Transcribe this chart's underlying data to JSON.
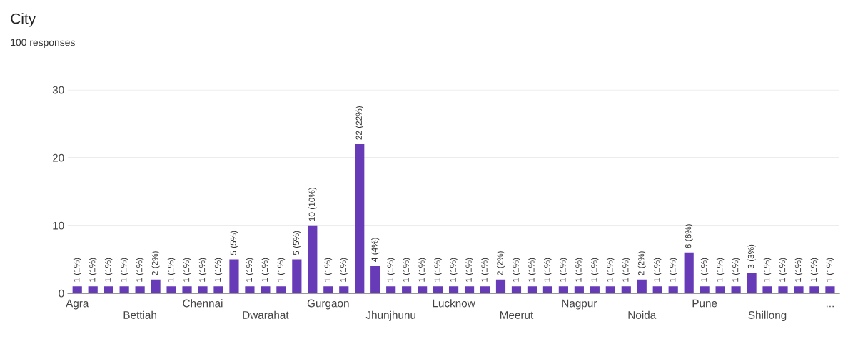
{
  "chart_data": {
    "type": "bar",
    "title": "City",
    "subtitle": "100 responses",
    "categories": [
      "Agra",
      null,
      null,
      null,
      "Bettiah",
      null,
      null,
      null,
      "Chennai",
      null,
      null,
      null,
      "Dwarahat",
      null,
      null,
      null,
      "Gurgaon",
      null,
      null,
      null,
      "Jhunjhunu",
      null,
      null,
      null,
      "Lucknow",
      null,
      null,
      null,
      "Meerut",
      null,
      null,
      null,
      "Nagpur",
      null,
      null,
      null,
      "Noida",
      null,
      null,
      null,
      "Pune",
      null,
      null,
      null,
      "Shillong",
      null,
      null,
      null,
      "..."
    ],
    "values": [
      1,
      1,
      1,
      1,
      1,
      2,
      1,
      1,
      1,
      1,
      5,
      1,
      1,
      1,
      5,
      10,
      1,
      1,
      22,
      4,
      1,
      1,
      1,
      1,
      1,
      1,
      1,
      2,
      1,
      1,
      1,
      1,
      1,
      1,
      1,
      1,
      2,
      1,
      1,
      6,
      1,
      1,
      1,
      3,
      1,
      1,
      1,
      1,
      1
    ],
    "value_labels": [
      "1 (1%)",
      "1 (1%)",
      "1 (1%)",
      "1 (1%)",
      "1 (1%)",
      "2 (2%)",
      "1 (1%)",
      "1 (1%)",
      "1 (1%)",
      "1 (1%)",
      "5 (5%)",
      "1 (1%)",
      "1 (1%)",
      "1 (1%)",
      "5 (5%)",
      "10 (10%)",
      "1 (1%)",
      "1 (1%)",
      "22 (22%)",
      "4 (4%)",
      "1 (1%)",
      "1 (1%)",
      "1 (1%)",
      "1 (1%)",
      "1 (1%)",
      "1 (1%)",
      "1 (1%)",
      "2 (2%)",
      "1 (1%)",
      "1 (1%)",
      "1 (1%)",
      "1 (1%)",
      "1 (1%)",
      "1 (1%)",
      "1 (1%)",
      "1 (1%)",
      "2 (2%)",
      "1 (1%)",
      "1 (1%)",
      "6 (6%)",
      "1 (1%)",
      "1 (1%)",
      "1 (1%)",
      "3 (3%)",
      "1 (1%)",
      "1 (1%)",
      "1 (1%)",
      "1 (1%)",
      "1 (1%)"
    ],
    "color": "#673ab7",
    "ylim": [
      0,
      30
    ],
    "yticks": [
      0,
      10,
      20,
      30
    ],
    "grid": "y"
  }
}
